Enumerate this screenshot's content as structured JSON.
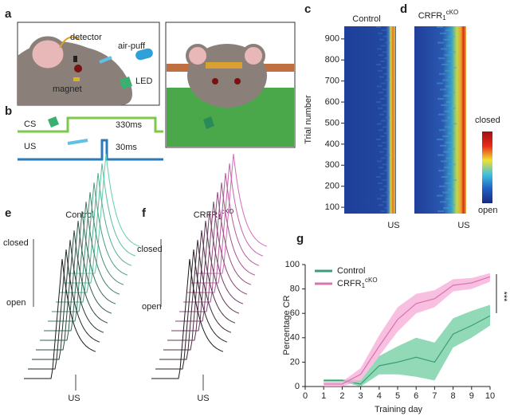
{
  "panel_labels": [
    "a",
    "b",
    "c",
    "d",
    "e",
    "f",
    "g"
  ],
  "panel_a": {
    "detector": "detector",
    "air_puff": "air-puff",
    "magnet": "magnet",
    "led": "LED"
  },
  "panel_b": {
    "cs": "CS",
    "cs_duration": "330ms",
    "us": "US",
    "us_duration": "30ms"
  },
  "panel_c": {
    "title": "Control",
    "ylabel": "Trial number",
    "ylim": [
      70,
      960
    ],
    "yticks": [
      100,
      200,
      300,
      400,
      500,
      600,
      700,
      800,
      900
    ],
    "xlabel": "US"
  },
  "panel_d": {
    "title": {
      "base": "CRFR",
      "sub": "1",
      "sup": "cKO"
    },
    "xlabel": "US"
  },
  "colorbar": {
    "high": "closed",
    "low": "open"
  },
  "panel_e": {
    "title": "Control",
    "high": "closed",
    "low": "open",
    "xlabel": "US"
  },
  "panel_f": {
    "title": {
      "base": "CRFR",
      "sub": "1",
      "sup": "cKO"
    },
    "high": "closed",
    "low": "open",
    "xlabel": "US"
  },
  "chart_data": {
    "type": "line",
    "x": [
      1,
      2,
      3,
      4,
      5,
      6,
      7,
      8,
      9,
      10
    ],
    "series": [
      {
        "name": "Control",
        "color": "#3a9f78",
        "band_color": "#6dcc9f",
        "values": [
          5,
          5,
          2,
          17,
          20,
          24,
          20,
          43,
          50,
          58
        ],
        "lower": [
          4,
          4,
          0,
          10,
          10,
          8,
          5,
          32,
          40,
          50
        ],
        "upper": [
          6,
          6,
          5,
          25,
          33,
          40,
          36,
          56,
          62,
          67
        ]
      },
      {
        "name": {
          "base": "CRFR",
          "sub": "1",
          "sup": "cKO"
        },
        "color": "#d873b0",
        "band_color": "#f5a9d6",
        "values": [
          2,
          2,
          10,
          33,
          55,
          68,
          72,
          83,
          85,
          90
        ],
        "lower": [
          0,
          0,
          5,
          25,
          45,
          60,
          65,
          78,
          80,
          86
        ],
        "upper": [
          4,
          4,
          15,
          42,
          65,
          76,
          79,
          88,
          89,
          93
        ]
      }
    ],
    "xlim": [
      0,
      10
    ],
    "xticks": [
      0,
      1,
      2,
      3,
      4,
      5,
      6,
      7,
      8,
      9,
      10
    ],
    "ylim": [
      0,
      100
    ],
    "yticks": [
      0,
      20,
      40,
      60,
      80,
      100
    ],
    "xlabel": "Training day",
    "ylabel": "Percentage CR",
    "annotation": "***",
    "legend": "upper left"
  }
}
